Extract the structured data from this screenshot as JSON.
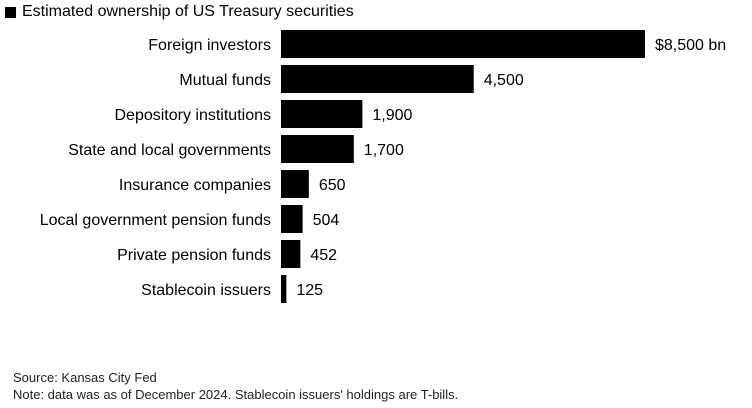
{
  "chart_data": {
    "type": "bar",
    "orientation": "horizontal",
    "legend": {
      "label": "Estimated ownership of US Treasury securities",
      "color": "#000000",
      "placement": "top-left"
    },
    "categories": [
      "Foreign investors",
      "Mutual funds",
      "Depository institutions",
      "State and local governments",
      "Insurance companies",
      "Local government pension funds",
      "Private pension funds",
      "Stablecoin issuers"
    ],
    "values": [
      8500,
      4500,
      1900,
      1700,
      650,
      504,
      452,
      125
    ],
    "data_labels": [
      "$8,500 bn",
      "4,500",
      "1,900",
      "1,700",
      "650",
      "504",
      "452",
      "125"
    ],
    "bar_color": "#000000",
    "xlim": [
      0,
      8500
    ],
    "grid": false
  },
  "footer": {
    "source": "Source: Kansas City Fed",
    "note": "Note: data was as of December 2024. Stablecoin issuers' holdings are T-bills."
  }
}
